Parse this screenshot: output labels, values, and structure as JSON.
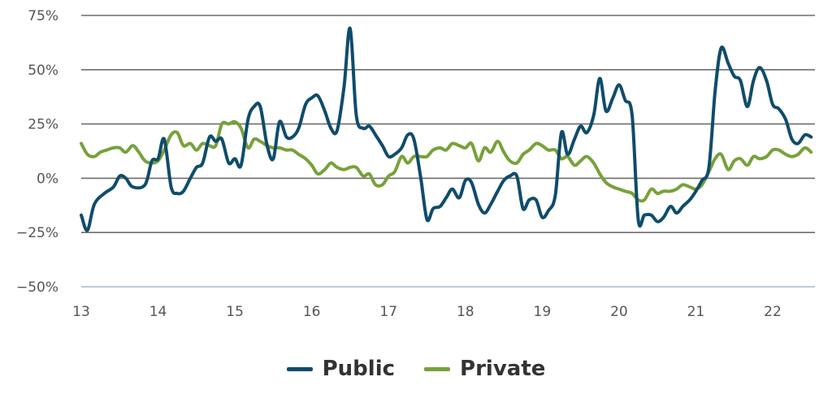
{
  "chart_data": {
    "type": "line",
    "title": "",
    "xlabel": "",
    "ylabel": "",
    "xlim": [
      13,
      22.55
    ],
    "ylim": [
      -50,
      75
    ],
    "x_ticks": [
      13,
      14,
      15,
      16,
      17,
      18,
      19,
      20,
      21,
      22
    ],
    "x_tick_labels": [
      "13",
      "14",
      "15",
      "16",
      "17",
      "18",
      "19",
      "20",
      "21",
      "22"
    ],
    "y_ticks": [
      75,
      50,
      25,
      0,
      -25,
      -50
    ],
    "y_tick_labels": [
      "75%",
      "50%",
      "25%",
      "0%",
      "−25%",
      "−50%"
    ],
    "grid": true,
    "legend_position": "bottom",
    "series": [
      {
        "name": "Public",
        "color": "#0f4c6b",
        "points": [
          [
            13.0,
            -17
          ],
          [
            13.08,
            -24
          ],
          [
            13.17,
            -12
          ],
          [
            13.3,
            -7
          ],
          [
            13.42,
            -4
          ],
          [
            13.5,
            1
          ],
          [
            13.58,
            0
          ],
          [
            13.67,
            -4
          ],
          [
            13.83,
            -3
          ],
          [
            13.92,
            8
          ],
          [
            14.0,
            9
          ],
          [
            14.08,
            18
          ],
          [
            14.17,
            -4
          ],
          [
            14.25,
            -7
          ],
          [
            14.33,
            -6
          ],
          [
            14.42,
            0
          ],
          [
            14.5,
            5
          ],
          [
            14.58,
            7
          ],
          [
            14.67,
            19
          ],
          [
            14.75,
            17
          ],
          [
            14.83,
            18
          ],
          [
            14.92,
            7
          ],
          [
            15.0,
            9
          ],
          [
            15.08,
            6
          ],
          [
            15.17,
            27
          ],
          [
            15.25,
            33
          ],
          [
            15.33,
            33
          ],
          [
            15.42,
            15
          ],
          [
            15.5,
            9
          ],
          [
            15.58,
            26
          ],
          [
            15.67,
            19
          ],
          [
            15.75,
            19
          ],
          [
            15.83,
            23
          ],
          [
            15.92,
            34
          ],
          [
            16.0,
            37
          ],
          [
            16.08,
            38
          ],
          [
            16.17,
            31
          ],
          [
            16.25,
            23
          ],
          [
            16.33,
            22
          ],
          [
            16.42,
            42
          ],
          [
            16.5,
            69
          ],
          [
            16.58,
            29
          ],
          [
            16.67,
            23
          ],
          [
            16.75,
            24
          ],
          [
            16.83,
            20
          ],
          [
            16.92,
            15
          ],
          [
            17.0,
            10
          ],
          [
            17.08,
            11
          ],
          [
            17.17,
            14
          ],
          [
            17.25,
            20
          ],
          [
            17.33,
            18
          ],
          [
            17.42,
            0
          ],
          [
            17.5,
            -19
          ],
          [
            17.58,
            -14
          ],
          [
            17.67,
            -13
          ],
          [
            17.75,
            -9
          ],
          [
            17.83,
            -5
          ],
          [
            17.92,
            -9
          ],
          [
            18.0,
            -1
          ],
          [
            18.08,
            -2
          ],
          [
            18.17,
            -12
          ],
          [
            18.25,
            -16
          ],
          [
            18.33,
            -12
          ],
          [
            18.42,
            -6
          ],
          [
            18.5,
            -1
          ],
          [
            18.58,
            1
          ],
          [
            18.67,
            1
          ],
          [
            18.75,
            -14
          ],
          [
            18.83,
            -10
          ],
          [
            18.92,
            -10
          ],
          [
            19.0,
            -18
          ],
          [
            19.08,
            -15
          ],
          [
            19.17,
            -8
          ],
          [
            19.25,
            21
          ],
          [
            19.33,
            11
          ],
          [
            19.42,
            18
          ],
          [
            19.5,
            24
          ],
          [
            19.58,
            21
          ],
          [
            19.67,
            29
          ],
          [
            19.75,
            46
          ],
          [
            19.83,
            31
          ],
          [
            19.92,
            37
          ],
          [
            20.0,
            43
          ],
          [
            20.08,
            36
          ],
          [
            20.17,
            29
          ],
          [
            20.25,
            -19
          ],
          [
            20.33,
            -17
          ],
          [
            20.42,
            -17
          ],
          [
            20.5,
            -20
          ],
          [
            20.58,
            -18
          ],
          [
            20.67,
            -13
          ],
          [
            20.75,
            -16
          ],
          [
            20.83,
            -13
          ],
          [
            20.92,
            -10
          ],
          [
            21.0,
            -6
          ],
          [
            21.08,
            -1
          ],
          [
            21.17,
            5
          ],
          [
            21.25,
            40
          ],
          [
            21.33,
            60
          ],
          [
            21.42,
            53
          ],
          [
            21.5,
            47
          ],
          [
            21.58,
            45
          ],
          [
            21.67,
            33
          ],
          [
            21.75,
            45
          ],
          [
            21.83,
            51
          ],
          [
            21.92,
            45
          ],
          [
            22.0,
            34
          ],
          [
            22.08,
            32
          ],
          [
            22.17,
            27
          ],
          [
            22.25,
            18
          ],
          [
            22.33,
            16
          ],
          [
            22.42,
            20
          ],
          [
            22.5,
            19
          ]
        ]
      },
      {
        "name": "Private",
        "color": "#77a13a",
        "points": [
          [
            13.0,
            16
          ],
          [
            13.08,
            11
          ],
          [
            13.17,
            10
          ],
          [
            13.25,
            12
          ],
          [
            13.33,
            13
          ],
          [
            13.42,
            14
          ],
          [
            13.5,
            14
          ],
          [
            13.58,
            12
          ],
          [
            13.67,
            15
          ],
          [
            13.75,
            12
          ],
          [
            13.83,
            8
          ],
          [
            13.92,
            7
          ],
          [
            14.0,
            8
          ],
          [
            14.08,
            13
          ],
          [
            14.17,
            20
          ],
          [
            14.25,
            21
          ],
          [
            14.33,
            15
          ],
          [
            14.42,
            16
          ],
          [
            14.5,
            13
          ],
          [
            14.58,
            16
          ],
          [
            14.67,
            15
          ],
          [
            14.75,
            15
          ],
          [
            14.83,
            25
          ],
          [
            14.92,
            25
          ],
          [
            15.0,
            26
          ],
          [
            15.08,
            23
          ],
          [
            15.17,
            14
          ],
          [
            15.25,
            18
          ],
          [
            15.33,
            17
          ],
          [
            15.42,
            15
          ],
          [
            15.5,
            14
          ],
          [
            15.58,
            14
          ],
          [
            15.67,
            13
          ],
          [
            15.75,
            13
          ],
          [
            15.83,
            11
          ],
          [
            15.92,
            9
          ],
          [
            16.0,
            6
          ],
          [
            16.08,
            2
          ],
          [
            16.17,
            4
          ],
          [
            16.25,
            7
          ],
          [
            16.33,
            5
          ],
          [
            16.42,
            4
          ],
          [
            16.5,
            5
          ],
          [
            16.58,
            5
          ],
          [
            16.67,
            1
          ],
          [
            16.75,
            2
          ],
          [
            16.83,
            -3
          ],
          [
            16.92,
            -3
          ],
          [
            17.0,
            1
          ],
          [
            17.08,
            3
          ],
          [
            17.17,
            10
          ],
          [
            17.25,
            7
          ],
          [
            17.33,
            10
          ],
          [
            17.42,
            10
          ],
          [
            17.5,
            10
          ],
          [
            17.58,
            13
          ],
          [
            17.67,
            14
          ],
          [
            17.75,
            13
          ],
          [
            17.83,
            16
          ],
          [
            17.92,
            15
          ],
          [
            18.0,
            14
          ],
          [
            18.08,
            16
          ],
          [
            18.17,
            8
          ],
          [
            18.25,
            14
          ],
          [
            18.33,
            12
          ],
          [
            18.42,
            17
          ],
          [
            18.5,
            12
          ],
          [
            18.58,
            8
          ],
          [
            18.67,
            7
          ],
          [
            18.75,
            11
          ],
          [
            18.83,
            13
          ],
          [
            18.92,
            16
          ],
          [
            19.0,
            15
          ],
          [
            19.08,
            13
          ],
          [
            19.17,
            13
          ],
          [
            19.25,
            9
          ],
          [
            19.33,
            10
          ],
          [
            19.42,
            6
          ],
          [
            19.5,
            8
          ],
          [
            19.58,
            10
          ],
          [
            19.67,
            7
          ],
          [
            19.75,
            2
          ],
          [
            19.83,
            -2
          ],
          [
            19.92,
            -4
          ],
          [
            20.0,
            -5
          ],
          [
            20.08,
            -6
          ],
          [
            20.17,
            -7
          ],
          [
            20.25,
            -10
          ],
          [
            20.33,
            -10
          ],
          [
            20.42,
            -5
          ],
          [
            20.5,
            -7
          ],
          [
            20.58,
            -6
          ],
          [
            20.67,
            -6
          ],
          [
            20.75,
            -5
          ],
          [
            20.83,
            -3
          ],
          [
            20.92,
            -4
          ],
          [
            21.0,
            -5
          ],
          [
            21.08,
            -3
          ],
          [
            21.17,
            3
          ],
          [
            21.25,
            9
          ],
          [
            21.33,
            11
          ],
          [
            21.42,
            4
          ],
          [
            21.5,
            8
          ],
          [
            21.58,
            9
          ],
          [
            21.67,
            6
          ],
          [
            21.75,
            10
          ],
          [
            21.83,
            9
          ],
          [
            21.92,
            10
          ],
          [
            22.0,
            13
          ],
          [
            22.08,
            13
          ],
          [
            22.17,
            11
          ],
          [
            22.25,
            10
          ],
          [
            22.33,
            11
          ],
          [
            22.42,
            14
          ],
          [
            22.5,
            12
          ]
        ]
      }
    ]
  },
  "legend": {
    "public_label": "Public",
    "private_label": "Private"
  }
}
